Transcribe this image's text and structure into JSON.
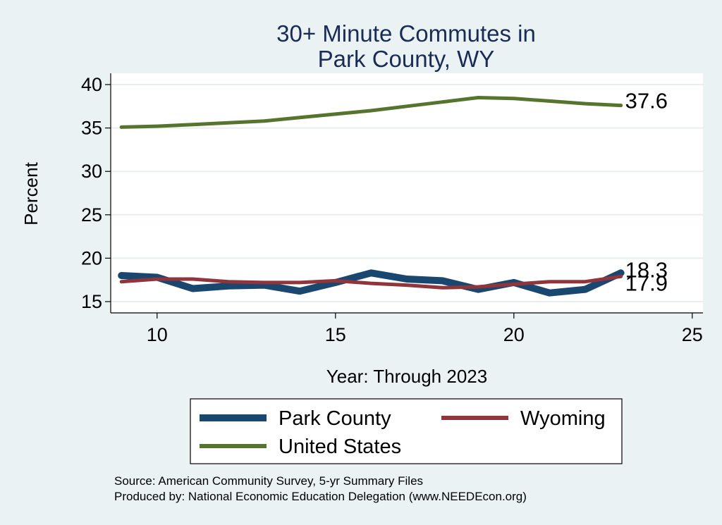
{
  "chart_data": {
    "type": "line",
    "title_lines": [
      "30+ Minute Commutes in",
      "Park County, WY"
    ],
    "xlabel": "Year: Through 2023",
    "ylabel": "Percent",
    "xlim": [
      8.7,
      25.3
    ],
    "ylim": [
      13.7,
      41.3
    ],
    "xticks": [
      10,
      15,
      20,
      25
    ],
    "yticks": [
      15,
      20,
      25,
      30,
      35,
      40
    ],
    "grid": true,
    "x": [
      9,
      10,
      11,
      12,
      13,
      14,
      15,
      16,
      17,
      18,
      19,
      20,
      21,
      22,
      23
    ],
    "series": [
      {
        "name": "Park County",
        "color": "#1a476f",
        "width": "thick",
        "values": [
          18.0,
          17.8,
          16.5,
          16.8,
          16.9,
          16.2,
          17.2,
          18.3,
          17.6,
          17.4,
          16.4,
          17.2,
          16.0,
          16.4,
          18.3
        ],
        "end_label": "18.3"
      },
      {
        "name": "Wyoming",
        "color": "#90353b",
        "width": "medium",
        "values": [
          17.3,
          17.6,
          17.6,
          17.3,
          17.2,
          17.2,
          17.4,
          17.1,
          16.9,
          16.6,
          16.7,
          17.0,
          17.3,
          17.3,
          17.9
        ],
        "end_label": "17.9"
      },
      {
        "name": "United States",
        "color": "#55752f",
        "width": "medium",
        "values": [
          35.1,
          35.2,
          35.4,
          35.6,
          35.8,
          36.2,
          36.6,
          37.0,
          37.5,
          38.0,
          38.5,
          38.4,
          38.1,
          37.8,
          37.6
        ],
        "end_label": "37.6"
      }
    ],
    "legend": {
      "placement": "bottom",
      "entries": [
        "Park County",
        "Wyoming",
        "United States"
      ]
    }
  },
  "source": {
    "line1": "Source: American Community Survey, 5-yr Summary Files",
    "line2": "Produced by: National Economic Education Delegation (www.NEEDEcon.org)"
  }
}
